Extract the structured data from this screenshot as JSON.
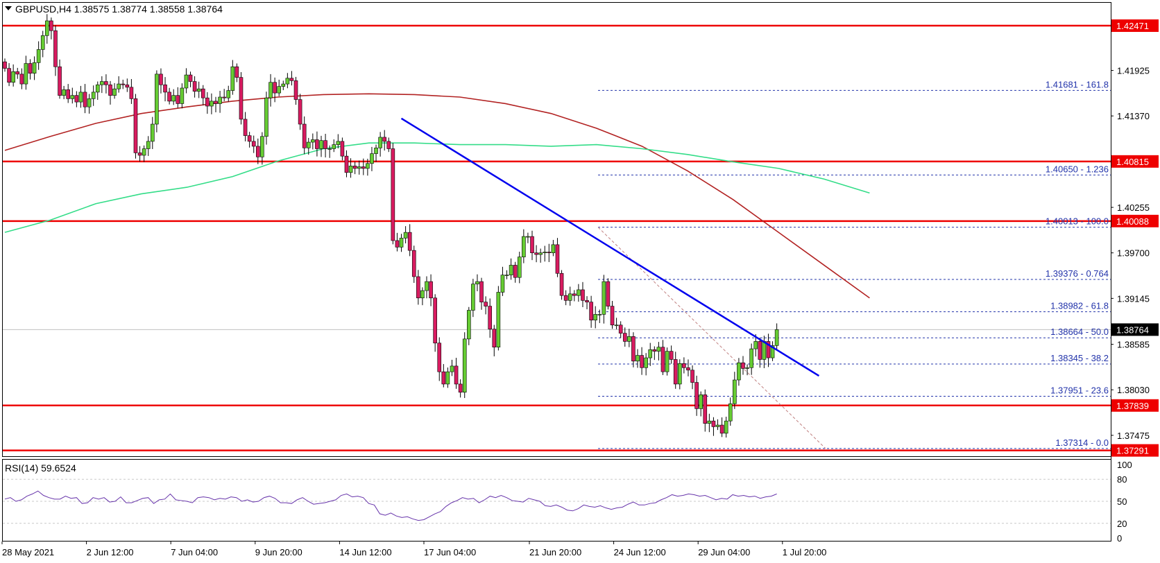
{
  "header": {
    "symbol_line": "GBPUSD,H4  1.38575 1.38774 1.38558 1.38764"
  },
  "rsi_panel": {
    "label": "RSI(14) 59.6524"
  },
  "colors": {
    "bull_candle": "#66cc33",
    "bear_candle": "#d81b60",
    "ma_fast": "#b22222",
    "ma_slow": "#33dd88",
    "trendline": "#0000ee",
    "horizontal_level": "#ee0000",
    "fib_level": "#2233aa",
    "rsi_line": "#6633aa"
  },
  "chart_data": {
    "type": "candlestick",
    "symbol": "GBPUSD",
    "timeframe": "H4",
    "title": "GBPUSD,H4  1.38575 1.38774 1.38558 1.38764",
    "ohlc_last": {
      "open": 1.38575,
      "high": 1.38774,
      "low": 1.38558,
      "close": 1.38764
    },
    "ylim": [
      1.3722,
      1.4275
    ],
    "y_ticks": [
      1.41925,
      1.4137,
      1.40255,
      1.397,
      1.39145,
      1.38585,
      1.3803,
      1.37475
    ],
    "x_tick_labels": [
      "28 May 2021",
      "2 Jun 12:00",
      "7 Jun 04:00",
      "9 Jun 20:00",
      "14 Jun 12:00",
      "17 Jun 04:00",
      "21 Jun 20:00",
      "24 Jun 12:00",
      "29 Jun 04:00",
      "1 Jul 20:00"
    ],
    "candle_closes": [
      1.4195,
      1.4178,
      1.4191,
      1.4188,
      1.4176,
      1.4201,
      1.4189,
      1.4202,
      1.4218,
      1.4235,
      1.4253,
      1.4241,
      1.4197,
      1.4162,
      1.4169,
      1.4158,
      1.4162,
      1.4154,
      1.4166,
      1.4148,
      1.4158,
      1.4166,
      1.4175,
      1.4179,
      1.4175,
      1.4162,
      1.417,
      1.4176,
      1.4175,
      1.4172,
      1.4158,
      1.4092,
      1.4089,
      1.4097,
      1.4106,
      1.4127,
      1.4188,
      1.4175,
      1.4166,
      1.4155,
      1.4162,
      1.4152,
      1.4171,
      1.4187,
      1.4179,
      1.4167,
      1.417,
      1.4159,
      1.4149,
      1.4155,
      1.4152,
      1.416,
      1.4159,
      1.4168,
      1.4197,
      1.4184,
      1.4133,
      1.4113,
      1.4106,
      1.41,
      1.4087,
      1.4112,
      1.4159,
      1.4178,
      1.4165,
      1.4173,
      1.4176,
      1.4183,
      1.418,
      1.4157,
      1.4127,
      1.4098,
      1.4105,
      1.4108,
      1.4097,
      1.4107,
      1.4097,
      1.4097,
      1.4102,
      1.4106,
      1.4088,
      1.4068,
      1.4076,
      1.4073,
      1.4075,
      1.4073,
      1.4079,
      1.4091,
      1.4098,
      1.4111,
      1.4106,
      1.4097,
      1.3985,
      1.3977,
      1.3988,
      1.3995,
      1.3973,
      1.3941,
      1.3915,
      1.3924,
      1.3935,
      1.3915,
      1.386,
      1.3825,
      1.381,
      1.3825,
      1.3832,
      1.381,
      1.38,
      1.3865,
      1.39,
      1.3932,
      1.3935,
      1.391,
      1.3905,
      1.3877,
      1.3855,
      1.3922,
      1.3943,
      1.3943,
      1.3955,
      1.394,
      1.3965,
      1.399,
      1.399,
      1.397,
      1.3968,
      1.397,
      1.3971,
      1.397,
      1.398,
      1.3945,
      1.3918,
      1.3912,
      1.392,
      1.3918,
      1.3925,
      1.3912,
      1.391,
      1.3888,
      1.3895,
      1.3895,
      1.3935,
      1.3905,
      1.3882,
      1.3882,
      1.3872,
      1.3862,
      1.3868,
      1.3838,
      1.3845,
      1.383,
      1.3842,
      1.3852,
      1.385,
      1.3855,
      1.3825,
      1.385,
      1.384,
      1.381,
      1.3835,
      1.383,
      1.3827,
      1.3812,
      1.378,
      1.3797,
      1.3762,
      1.3765,
      1.3758,
      1.376,
      1.375,
      1.3765,
      1.3786,
      1.3815,
      1.3836,
      1.3829,
      1.383,
      1.3853,
      1.3862,
      1.384,
      1.3862,
      1.3842,
      1.3857,
      1.38764
    ],
    "horizontal_levels": [
      1.42471,
      1.40815,
      1.40088,
      1.37839,
      1.37291
    ],
    "horizontal_level_labels": [
      "1.42471",
      "1.40815",
      "1.40088",
      "1.37839",
      "1.37291"
    ],
    "current_price_label": "1.38764",
    "fibonacci_levels": [
      {
        "price": 1.41681,
        "label": "1.41681 - 161.8"
      },
      {
        "price": 1.4065,
        "label": "1.40650 - 1.236"
      },
      {
        "price": 1.40013,
        "label": "1.40013 - 100.0"
      },
      {
        "price": 1.39376,
        "label": "1.39376 - 0.764"
      },
      {
        "price": 1.38982,
        "label": "1.38982 - 61.8"
      },
      {
        "price": 1.38664,
        "label": "1.38664 - 50.0"
      },
      {
        "price": 1.38345,
        "label": "1.38345 - 38.2"
      },
      {
        "price": 1.37951,
        "label": "1.37951 - 23.6"
      },
      {
        "price": 1.37314,
        "label": "1.37314 - 0.0"
      }
    ],
    "trendline": {
      "from": {
        "bar": 94,
        "price": 1.4134
      },
      "to": {
        "bar": 193,
        "price": 1.382
      }
    },
    "ma_fast": [
      1.4095,
      1.4112,
      1.4128,
      1.414,
      1.4148,
      1.4155,
      1.416,
      1.4163,
      1.4164,
      1.4163,
      1.416,
      1.4152,
      1.414,
      1.4122,
      1.41,
      1.407,
      1.4035,
      1.3995,
      1.3955,
      1.3915
    ],
    "ma_slow": [
      1.3995,
      1.401,
      1.403,
      1.4042,
      1.405,
      1.4063,
      1.4082,
      1.4097,
      1.4104,
      1.4104,
      1.4102,
      1.4102,
      1.41,
      1.4102,
      1.4097,
      1.409,
      1.4081,
      1.4073,
      1.406,
      1.4043
    ],
    "ma_span_bars": [
      0,
      205
    ],
    "rsi": {
      "label": "RSI(14) 59.6524",
      "value": 59.6524,
      "ylim": [
        0,
        100
      ],
      "levels": [
        20,
        50,
        80
      ],
      "y_tick_labels": [
        "100",
        "80",
        "50",
        "20",
        "0"
      ],
      "values": [
        53,
        55,
        50,
        52,
        57,
        60,
        64,
        58,
        55,
        53,
        53,
        57,
        54,
        55,
        47,
        48,
        55,
        53,
        55,
        49,
        50,
        56,
        48,
        48,
        51,
        54,
        55,
        47,
        52,
        53,
        60,
        52,
        51,
        50,
        48,
        55,
        56,
        55,
        52,
        54,
        53,
        56,
        55,
        50,
        52,
        49,
        50,
        55,
        57,
        54,
        48,
        48,
        47,
        52,
        55,
        50,
        46,
        47,
        48,
        50,
        52,
        58,
        60,
        56,
        57,
        55,
        47,
        45,
        33,
        31,
        34,
        30,
        28,
        29,
        26,
        24,
        25,
        29,
        33,
        36,
        43,
        48,
        51,
        55,
        53,
        54,
        48,
        52,
        57,
        55,
        58,
        55,
        51,
        50,
        49,
        54,
        52,
        50,
        44,
        43,
        45,
        42,
        38,
        37,
        40,
        45,
        43,
        42,
        44,
        41,
        39,
        41,
        42,
        46,
        49,
        45,
        45,
        47,
        48,
        52,
        55,
        59,
        57,
        58,
        60,
        59,
        57,
        58,
        55,
        52,
        54,
        53,
        59,
        57,
        58,
        56,
        57,
        54,
        56,
        57,
        60
      ]
    }
  }
}
